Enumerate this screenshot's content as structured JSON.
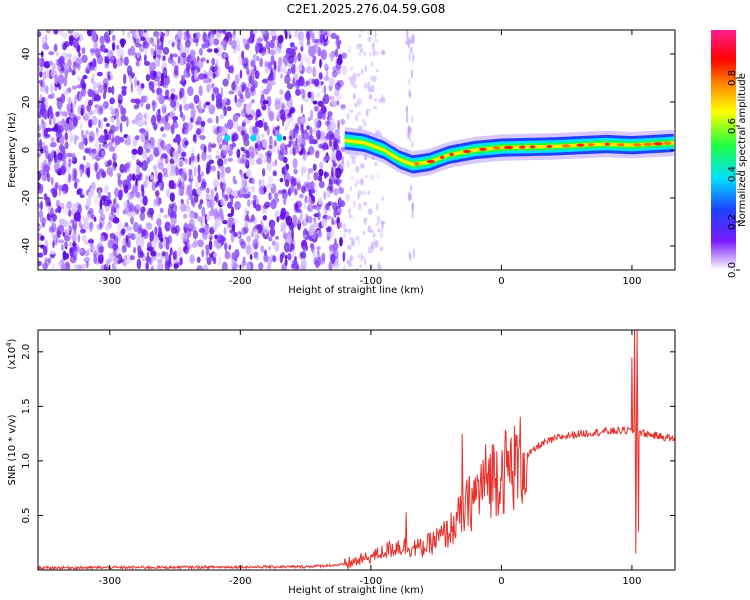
{
  "title": "C2E1.2025.276.04.59.G08",
  "chart_data": [
    {
      "type": "heatmap",
      "name": "spectrogram",
      "xlabel": "Height of straight line (km)",
      "ylabel": "Frequency (Hz)",
      "xlim": [
        -355,
        133
      ],
      "ylim": [
        -50,
        50
      ],
      "xticks": [
        -300,
        -200,
        -100,
        0,
        100
      ],
      "yticks": [
        -40,
        -20,
        0,
        20,
        40
      ],
      "xtick_labels": [
        "-300",
        "-200",
        "-100",
        "0",
        "100"
      ],
      "ytick_labels": [
        "-40",
        "-20",
        "0",
        "20",
        "40"
      ],
      "colorbar": {
        "label": "Normalized spectral amplitude",
        "range": [
          0,
          1
        ],
        "ticks": [
          0.0,
          0.2,
          0.4,
          0.6,
          0.8
        ],
        "tick_labels": [
          "0.0",
          "0.2",
          "0.4",
          "0.6",
          "0.8"
        ],
        "colormap": "rainbow (white-violet-blue-cyan-green-yellow-orange-red-magenta)"
      },
      "noise_region_x": [
        -355,
        -120
      ],
      "signal_track": [
        {
          "x": -120,
          "y": 4
        },
        {
          "x": -105,
          "y": 3
        },
        {
          "x": -90,
          "y": 0
        },
        {
          "x": -78,
          "y": -4
        },
        {
          "x": -68,
          "y": -6
        },
        {
          "x": -55,
          "y": -5
        },
        {
          "x": -40,
          "y": -2
        },
        {
          "x": -20,
          "y": 0
        },
        {
          "x": 0,
          "y": 1
        },
        {
          "x": 40,
          "y": 1.5
        },
        {
          "x": 80,
          "y": 2.5
        },
        {
          "x": 100,
          "y": 2
        },
        {
          "x": 133,
          "y": 3
        }
      ]
    },
    {
      "type": "line",
      "name": "snr",
      "color": "#e8302c",
      "xlabel": "Height of straight line (km)",
      "ylabel": "SNR (10 * v/v)",
      "yscale_label": "(x10",
      "yscale_exponent": "4",
      "xlim": [
        -355,
        133
      ],
      "ylim": [
        0,
        2.2
      ],
      "xticks": [
        -300,
        -200,
        -100,
        0,
        100
      ],
      "yticks": [
        0.5,
        1.0,
        1.5,
        2.0
      ],
      "xtick_labels": [
        "-300",
        "-200",
        "-100",
        "0",
        "100"
      ],
      "ytick_labels": [
        "0.5",
        "1.0",
        "1.5",
        "2.0"
      ],
      "envelope": [
        {
          "x": -355,
          "y": 0.02
        },
        {
          "x": -150,
          "y": 0.03
        },
        {
          "x": -120,
          "y": 0.05
        },
        {
          "x": -100,
          "y": 0.12
        },
        {
          "x": -80,
          "y": 0.22
        },
        {
          "x": -60,
          "y": 0.2
        },
        {
          "x": -40,
          "y": 0.35
        },
        {
          "x": -25,
          "y": 0.6
        },
        {
          "x": -10,
          "y": 0.85
        },
        {
          "x": 10,
          "y": 0.95
        },
        {
          "x": 20,
          "y": 1.05
        },
        {
          "x": 30,
          "y": 1.15
        },
        {
          "x": 45,
          "y": 1.22
        },
        {
          "x": 60,
          "y": 1.25
        },
        {
          "x": 80,
          "y": 1.27
        },
        {
          "x": 100,
          "y": 1.28
        },
        {
          "x": 110,
          "y": 1.25
        },
        {
          "x": 133,
          "y": 1.2
        }
      ],
      "spikes": [
        {
          "x": -73,
          "y": 0.53
        },
        {
          "x": -30,
          "y": 1.25
        },
        {
          "x": 10,
          "y": 1.32
        },
        {
          "x": 100,
          "y": 1.95
        },
        {
          "x": 102,
          "y": 2.2
        },
        {
          "x": 104,
          "y": 2.2
        },
        {
          "x": 103,
          "y": 0.15
        },
        {
          "x": 105,
          "y": 0.35
        }
      ]
    }
  ]
}
